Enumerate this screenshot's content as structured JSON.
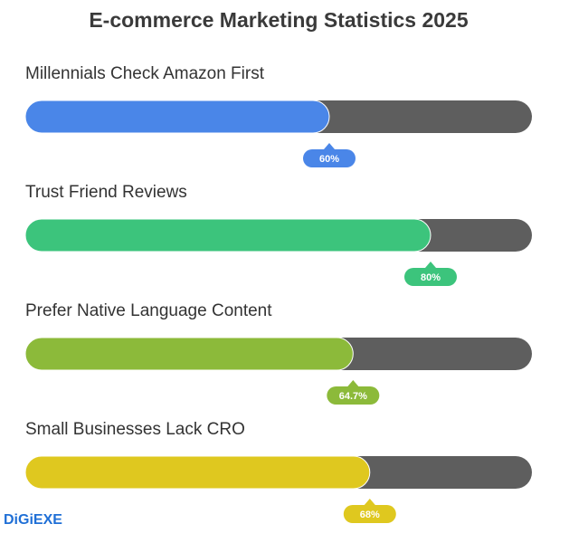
{
  "chart_data": {
    "type": "progress",
    "title": "E-commerce Marketing Statistics 2025",
    "categories": [
      "Millennials Check Amazon First",
      "Trust Friend Reviews",
      "Prefer Native Language Content",
      "Small Businesses Lack CRO"
    ],
    "values": [
      60,
      80,
      64.7,
      68
    ],
    "value_labels": [
      "60%",
      "80%",
      "64.7%",
      "68%"
    ],
    "colors": [
      "#4a86e8",
      "#3cc47c",
      "#8cba3a",
      "#dfc81f"
    ],
    "track_color": "#5e5e5e",
    "xlim": [
      0,
      100
    ]
  },
  "brand": "DiGiEXE"
}
